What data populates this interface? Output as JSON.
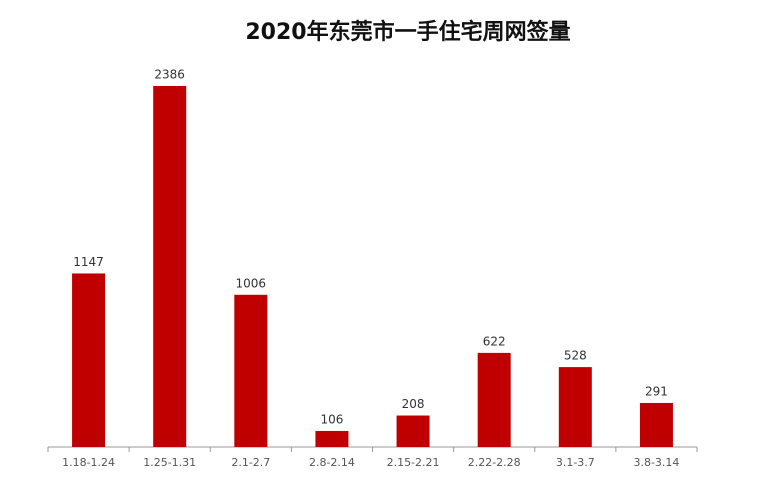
{
  "chart_data": {
    "type": "bar",
    "title": "2020年东莞市一手住宅周网签量",
    "categories": [
      "1.18-1.24",
      "1.25-1.31",
      "2.1-2.7",
      "2.8-2.14",
      "2.15-2.21",
      "2.22-2.28",
      "3.1-3.7",
      "3.8-3.14"
    ],
    "values": [
      1147,
      2386,
      1006,
      106,
      208,
      622,
      528,
      291
    ],
    "color": "#c00000"
  }
}
